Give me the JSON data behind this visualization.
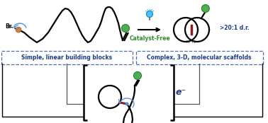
{
  "bg_color": "#ffffff",
  "catalyst_free_color": "#2e8b2e",
  "label_color": "#1a3a8a",
  "box_color": "#4a6fa5",
  "bond_red_color": "#8b1a1a",
  "green_color": "#4caf50",
  "green_edge": "#2e7d32",
  "blue_color": "#4a90d9",
  "light_blue": "#4fc3f7",
  "orange_color": "#d48040",
  "text_catalyst": "Catalyst-Free",
  "text_left_box": "Simple, linear building blocks",
  "text_right_box": "Complex, 3-D, molecular scaffolds",
  "text_dr": ">20:1 d.r.",
  "text_e": "e⁻",
  "text_Br": "Br"
}
